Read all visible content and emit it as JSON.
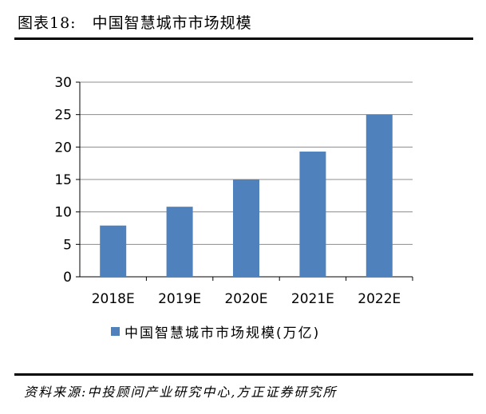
{
  "figure": {
    "label": "图表18:",
    "title": "中国智慧城市市场规模"
  },
  "chart_data": {
    "type": "bar",
    "categories": [
      "2018E",
      "2019E",
      "2020E",
      "2021E",
      "2022E"
    ],
    "series": [
      {
        "name": "中国智慧城市市场规模(万亿)",
        "values": [
          7.9,
          10.8,
          15.0,
          19.3,
          25.0
        ],
        "color": "#4f81bd"
      }
    ],
    "ylim": [
      0,
      30
    ],
    "yticks": [
      0,
      5,
      10,
      15,
      20,
      25,
      30
    ],
    "grid": true,
    "legend": "bottom"
  },
  "source": "资料来源:中投顾问产业研究中心,方正证券研究所"
}
